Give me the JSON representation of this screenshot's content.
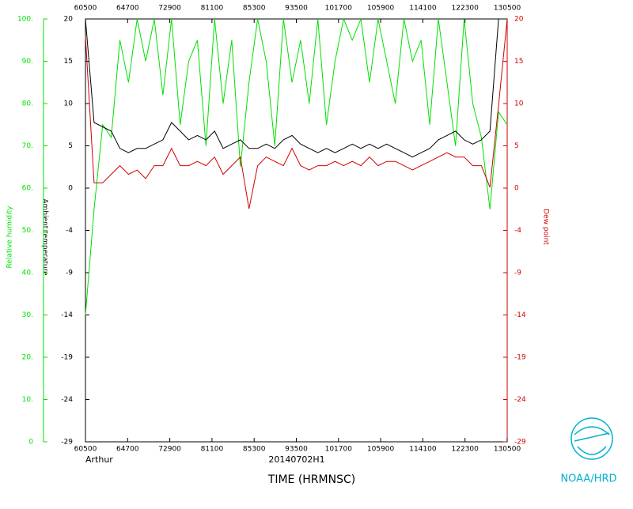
{
  "chart_data": {
    "type": "line",
    "title": "TIME (HRMNSC)",
    "subtitle": "20140702H1",
    "storm": "Arthur",
    "credit": "NOAA/HRD",
    "xtick_labels": [
      "60500",
      "64700",
      "72900",
      "81100",
      "85300",
      "93500",
      "101700",
      "105900",
      "114100",
      "122300",
      "130500"
    ],
    "ylabel": "Ambient temperature",
    "ylim": [
      -29,
      20
    ],
    "yticks": [
      {
        "value": -29,
        "label": "-29"
      },
      {
        "value": -24.1,
        "label": "-24"
      },
      {
        "value": -19.2,
        "label": "-19"
      },
      {
        "value": -14.3,
        "label": "-14"
      },
      {
        "value": -9.4,
        "label": "-9"
      },
      {
        "value": -4.5,
        "label": "-4"
      },
      {
        "value": 0.4,
        "label": "0"
      },
      {
        "value": 5.3,
        "label": "5"
      },
      {
        "value": 10.2,
        "label": "10"
      },
      {
        "value": 15.1,
        "label": "15"
      },
      {
        "value": 20,
        "label": "20"
      }
    ],
    "y2label": "Dew point",
    "y2lim": [
      -29,
      20
    ],
    "y2ticks": [
      {
        "value": -29,
        "label": "-29"
      },
      {
        "value": -24.1,
        "label": "-24"
      },
      {
        "value": -19.2,
        "label": "-19"
      },
      {
        "value": -14.3,
        "label": "-14"
      },
      {
        "value": -9.4,
        "label": "-9"
      },
      {
        "value": -4.5,
        "label": "-4"
      },
      {
        "value": 0.4,
        "label": "0"
      },
      {
        "value": 5.3,
        "label": "5"
      },
      {
        "value": 10.2,
        "label": "10"
      },
      {
        "value": 15.1,
        "label": "15"
      },
      {
        "value": 20,
        "label": "20"
      }
    ],
    "y3label": "Relative humidity",
    "y3lim": [
      0,
      100
    ],
    "y3ticks": [
      0,
      {
        "value": 10,
        "label": "10."
      },
      {
        "value": 20,
        "label": "20."
      },
      {
        "value": 30,
        "label": "30."
      },
      {
        "value": 40,
        "label": "40."
      },
      {
        "value": 50,
        "label": "50."
      },
      {
        "value": 60,
        "label": "60."
      },
      {
        "value": 70,
        "label": "70."
      },
      {
        "value": 80,
        "label": "80."
      },
      {
        "value": 90,
        "label": "90."
      },
      {
        "value": 100,
        "label": "100."
      }
    ],
    "series": [
      {
        "name": "Relative humidity",
        "axis": "y3",
        "color": "#00e000",
        "values": [
          30,
          55,
          75,
          72,
          95,
          85,
          100,
          90,
          100,
          82,
          100,
          75,
          90,
          95,
          70,
          100,
          80,
          95,
          65,
          85,
          100,
          90,
          70,
          100,
          85,
          95,
          80,
          100,
          75,
          90,
          100,
          95,
          100,
          85,
          100,
          90,
          80,
          100,
          90,
          95,
          75,
          100,
          85,
          70,
          100,
          80,
          72,
          55,
          78,
          75
        ]
      },
      {
        "name": "Ambient temperature",
        "axis": "y",
        "color": "#000000",
        "values": [
          20,
          8,
          7.5,
          7,
          5,
          4.5,
          5,
          5,
          5.5,
          6,
          8,
          7,
          6,
          6.5,
          6,
          7,
          5,
          5.5,
          6,
          5,
          5,
          5.5,
          5,
          6,
          6.5,
          5.5,
          5,
          4.5,
          5,
          4.5,
          5,
          5.5,
          5,
          5.5,
          5,
          5.5,
          5,
          4.5,
          4,
          4.5,
          5,
          6,
          6.5,
          7,
          6,
          5.5,
          6,
          7,
          20,
          20
        ]
      },
      {
        "name": "Dew point",
        "axis": "y2",
        "color": "#d00000",
        "values": [
          18,
          1,
          1,
          2,
          3,
          2,
          2.5,
          1.5,
          3,
          3,
          5,
          3,
          3,
          3.5,
          3,
          4,
          2,
          3,
          4,
          -2,
          3,
          4,
          3.5,
          3,
          5,
          3,
          2.5,
          3,
          3,
          3.5,
          3,
          3.5,
          3,
          4,
          3,
          3.5,
          3.5,
          3,
          2.5,
          3,
          3.5,
          4,
          4.5,
          4,
          4,
          3,
          3,
          0.5,
          10,
          20
        ]
      }
    ]
  }
}
